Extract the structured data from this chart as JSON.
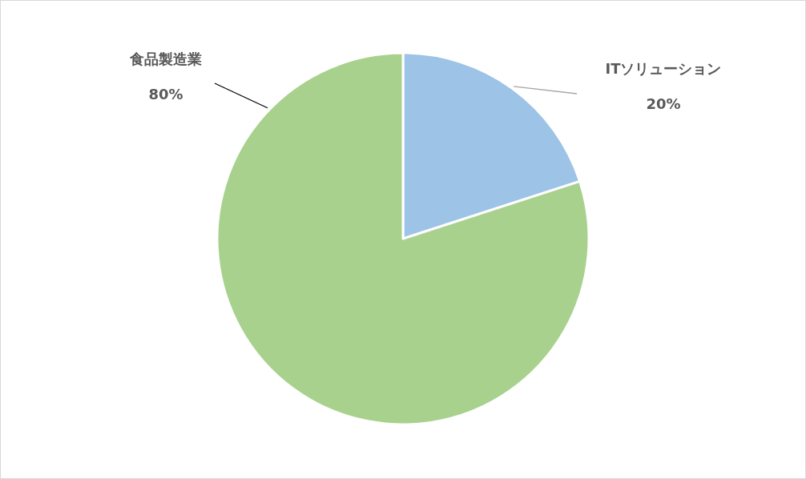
{
  "chart_data": {
    "type": "pie",
    "categories": [
      "ITソリューション",
      "食品製造業"
    ],
    "values": [
      20,
      80
    ],
    "colors": [
      "#9dc3e6",
      "#a9d18e"
    ],
    "value_labels": [
      "20%",
      "80%"
    ]
  }
}
